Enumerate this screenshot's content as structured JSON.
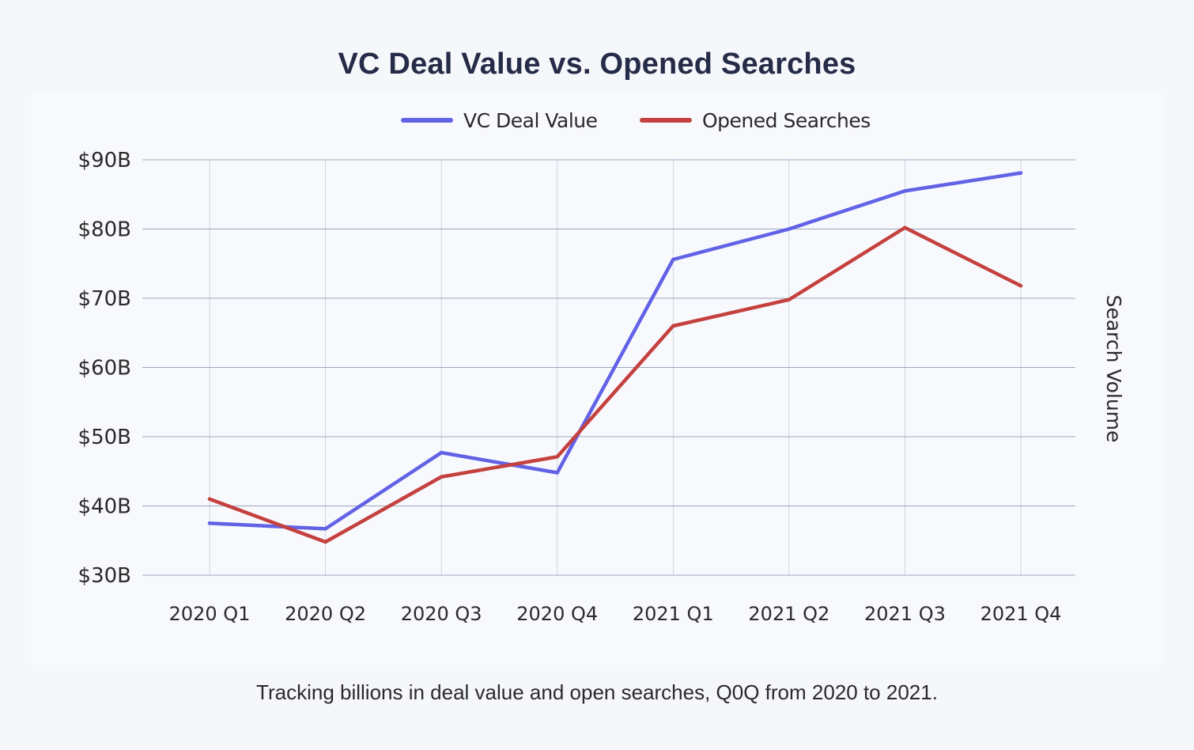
{
  "title": "VC Deal Value vs. Opened Searches",
  "caption": "Tracking billions in deal value and open searches, Q0Q from 2020 to 2021.",
  "colors": {
    "vc_deal_value": "#6262e6",
    "opened_searches": "#c4413f",
    "grid": "#9aa6bd",
    "title": "#262b48"
  },
  "chart_data": {
    "type": "line",
    "title": "VC Deal Value vs. Opened Searches",
    "xlabel": "",
    "ylabel": "",
    "y2label": "Search Volume",
    "categories": [
      "2020 Q1",
      "2020 Q2",
      "2020 Q3",
      "2020 Q4",
      "2021 Q1",
      "2021 Q2",
      "2021 Q3",
      "2021 Q4"
    ],
    "y_ticks": [
      "$30B",
      "$40B",
      "$50B",
      "$60B",
      "$70B",
      "$80B",
      "$90B"
    ],
    "ylim": [
      30,
      90
    ],
    "grid": true,
    "legend_position": "top-center",
    "series": [
      {
        "name": "VC Deal Value",
        "color": "#6262e6",
        "values": [
          37.5,
          36.7,
          47.7,
          44.8,
          75.6,
          80.0,
          85.5,
          88.1
        ]
      },
      {
        "name": "Opened Searches",
        "color": "#c4413f",
        "values": [
          41.0,
          34.8,
          44.2,
          47.1,
          66.0,
          69.8,
          80.2,
          71.8
        ]
      }
    ]
  }
}
